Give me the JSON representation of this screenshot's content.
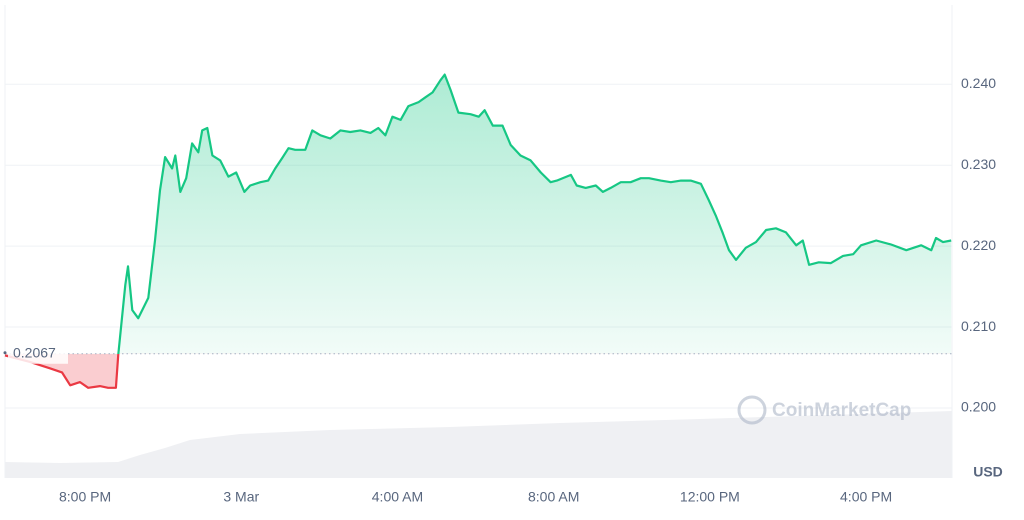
{
  "chart_data": {
    "type": "line",
    "x": [
      17.95,
      18.59,
      19.1,
      19.41,
      19.62,
      19.87,
      20.08,
      20.38,
      20.59,
      20.79,
      20.85,
      21.03,
      21.1,
      21.21,
      21.36,
      21.62,
      21.79,
      21.92,
      22.05,
      22.23,
      22.31,
      22.44,
      22.59,
      22.74,
      22.9,
      23.0,
      23.13,
      23.26,
      23.46,
      23.67,
      23.87,
      24.08,
      24.23,
      24.49,
      24.69,
      24.87,
      25.05,
      25.21,
      25.38,
      25.64,
      25.82,
      26.03,
      26.28,
      26.54,
      26.79,
      27.05,
      27.31,
      27.51,
      27.69,
      27.87,
      28.08,
      28.28,
      28.54,
      28.72,
      28.9,
      29.1,
      29.21,
      29.36,
      29.56,
      29.87,
      30.08,
      30.23,
      30.44,
      30.69,
      30.9,
      31.15,
      31.41,
      31.67,
      31.92,
      32.08,
      32.44,
      32.59,
      32.82,
      33.08,
      33.26,
      33.46,
      33.72,
      33.97,
      34.23,
      34.44,
      34.74,
      35.0,
      35.26,
      35.51,
      35.77,
      35.97,
      36.15,
      36.33,
      36.49,
      36.67,
      36.92,
      37.18,
      37.44,
      37.69,
      37.95,
      38.21,
      38.38,
      38.54,
      38.79,
      39.1,
      39.41,
      39.67,
      39.87,
      40.26,
      40.64,
      41.03,
      41.41,
      41.67,
      41.79,
      41.97,
      42.18
    ],
    "values": [
      0.2065,
      0.2057,
      0.2049,
      0.2044,
      0.2028,
      0.2032,
      0.2025,
      0.2027,
      0.2025,
      0.2025,
      0.2065,
      0.2152,
      0.2175,
      0.2121,
      0.2111,
      0.2136,
      0.2207,
      0.2269,
      0.231,
      0.2296,
      0.2312,
      0.2267,
      0.2284,
      0.2327,
      0.2316,
      0.2343,
      0.2346,
      0.2312,
      0.2306,
      0.2286,
      0.2291,
      0.2267,
      0.2275,
      0.2279,
      0.2281,
      0.2296,
      0.2309,
      0.2321,
      0.2319,
      0.2319,
      0.2343,
      0.2337,
      0.2333,
      0.2343,
      0.2341,
      0.2343,
      0.234,
      0.2346,
      0.2337,
      0.236,
      0.2356,
      0.2373,
      0.2378,
      0.2384,
      0.239,
      0.2405,
      0.2412,
      0.2393,
      0.2365,
      0.2363,
      0.236,
      0.2368,
      0.2349,
      0.2349,
      0.2325,
      0.2312,
      0.2306,
      0.2291,
      0.2279,
      0.2281,
      0.2288,
      0.2275,
      0.2272,
      0.2275,
      0.2267,
      0.2272,
      0.2279,
      0.2279,
      0.2284,
      0.2284,
      0.2281,
      0.2279,
      0.2281,
      0.2281,
      0.2277,
      0.2257,
      0.2238,
      0.2216,
      0.2195,
      0.2183,
      0.2198,
      0.2205,
      0.222,
      0.2222,
      0.2217,
      0.2201,
      0.2207,
      0.2177,
      0.218,
      0.2179,
      0.2188,
      0.219,
      0.2201,
      0.2207,
      0.2202,
      0.2195,
      0.2201,
      0.2195,
      0.221,
      0.2205,
      0.2207
    ],
    "xlim": [
      17.95,
      42.2
    ],
    "xticks": [
      {
        "value": 20,
        "label": "8:00 PM"
      },
      {
        "value": 24,
        "label": "3 Mar"
      },
      {
        "value": 28,
        "label": "4:00 AM"
      },
      {
        "value": 32,
        "label": "8:00 AM"
      },
      {
        "value": 36,
        "label": "12:00 PM"
      },
      {
        "value": 40,
        "label": "4:00 PM"
      }
    ],
    "ylim": [
      0.1911,
      0.2498
    ],
    "yticks": [
      {
        "value": 0.2,
        "label": "0.200"
      },
      {
        "value": 0.21,
        "label": "0.210"
      },
      {
        "value": 0.22,
        "label": "0.220"
      },
      {
        "value": 0.23,
        "label": "0.230"
      },
      {
        "value": 0.24,
        "label": "0.240"
      }
    ],
    "baseline": {
      "value": 0.2067,
      "label": "0.2067"
    },
    "up_color": "#16c784",
    "down_color": "#ea3943",
    "grid": true,
    "currency": "USD",
    "watermark": "CoinMarketCap"
  }
}
